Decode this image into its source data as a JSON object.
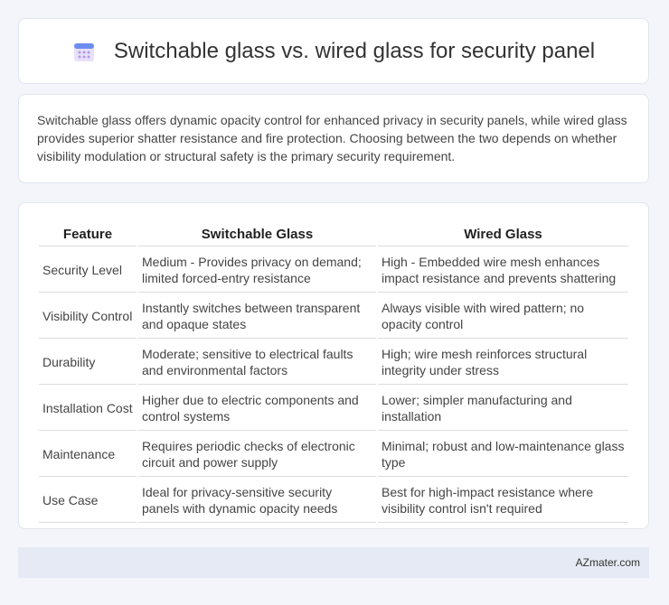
{
  "header": {
    "title": "Switchable glass vs. wired glass for security panel"
  },
  "summary": "Switchable glass offers dynamic opacity control for enhanced privacy in security panels, while wired glass provides superior shatter resistance and fire protection. Choosing between the two depends on whether visibility modulation or structural safety is the primary security requirement.",
  "table": {
    "columns": [
      "Feature",
      "Switchable Glass",
      "Wired Glass"
    ],
    "rows": [
      [
        "Security Level",
        "Medium - Provides privacy on demand; limited forced-entry resistance",
        "High - Embedded wire mesh enhances impact resistance and prevents shattering"
      ],
      [
        "Visibility Control",
        "Instantly switches between transparent and opaque states",
        "Always visible with wired pattern; no opacity control"
      ],
      [
        "Durability",
        "Moderate; sensitive to electrical faults and environmental factors",
        "High; wire mesh reinforces structural integrity under stress"
      ],
      [
        "Installation Cost",
        "Higher due to electric components and control systems",
        "Lower; simpler manufacturing and installation"
      ],
      [
        "Maintenance",
        "Requires periodic checks of electronic circuit and power supply",
        "Minimal; robust and low-maintenance glass type"
      ],
      [
        "Use Case",
        "Ideal for privacy-sensitive security panels with dynamic opacity needs",
        "Best for high-impact resistance where visibility control isn't required"
      ]
    ]
  },
  "footer": {
    "source": "AZmater.com"
  }
}
